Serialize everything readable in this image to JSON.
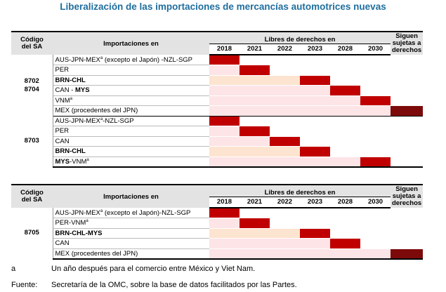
{
  "title": "Liberalización de las importaciones de mercancías automotrices nuevas",
  "header": {
    "hs_label_1": "Código",
    "hs_label_2": "del SA",
    "imports_label": "Importaciones en",
    "duty_free_label": "Libres de derechos en",
    "years": [
      "2018",
      "2021",
      "2022",
      "2023",
      "2028",
      "2030"
    ],
    "still_label_1": "Siguen",
    "still_label_2": "sujetas a",
    "still_label_2_alt": "sujetas a",
    "still_label_3": "derechos"
  },
  "table1": {
    "group1": {
      "hs_1": "8702",
      "hs_2": "8704",
      "rows": [
        {
          "p1": "AUS-JPN-MEX",
          "sup": "a",
          "p2": " (excepto el Japón) -NZL-SGP",
          "p3": ""
        },
        {
          "p1": "PER",
          "sup": "",
          "p2": "",
          "p3": ""
        },
        {
          "p1": "BRN-CHL",
          "sup": "",
          "p2": "",
          "p3": ""
        },
        {
          "p1": "CAN - ",
          "sup": "",
          "p2": "MYS",
          "p3": ""
        },
        {
          "p1": "VNM",
          "sup": "a",
          "p2": "",
          "p3": ""
        },
        {
          "p1": "MEX (procedentes del JPN)",
          "sup": "",
          "p2": "",
          "p3": ""
        }
      ]
    },
    "group2": {
      "hs": "8703",
      "rows": [
        {
          "p1": "AUS-JPN-MEX",
          "sup": "a",
          "p2": "-NZL-SGP",
          "p3": ""
        },
        {
          "p1": "PER",
          "sup": "",
          "p2": "",
          "p3": ""
        },
        {
          "p1": "CAN",
          "sup": "",
          "p2": "",
          "p3": ""
        },
        {
          "p1": "BRN-CHL",
          "sup": "",
          "p2": "",
          "p3": ""
        },
        {
          "p1": "MYS",
          "sup": "",
          "p2": "-VNM",
          "p3": "a"
        }
      ]
    }
  },
  "table2": {
    "hs": "8705",
    "rows": [
      {
        "p1": "AUS-JPN-MEX",
        "sup": "a",
        "p2": " (excepto el Japón)-NZL-SGP",
        "p3": ""
      },
      {
        "p1": "PER-VNM",
        "sup": "a",
        "p2": "",
        "p3": ""
      },
      {
        "p1": "BRN-CHL-MYS",
        "sup": "",
        "p2": "",
        "p3": ""
      },
      {
        "p1": "CAN",
        "sup": "",
        "p2": "",
        "p3": ""
      },
      {
        "p1": "MEX (procedentes del JPN)",
        "sup": "",
        "p2": "",
        "p3": ""
      }
    ]
  },
  "legend_colors": {
    "duty_free_year": "#c00000",
    "phase_out": "#fde4e6",
    "phase_out_alt": "#fde4d0",
    "remains_dutiable": "#7d0a0a"
  },
  "notes": {
    "a_key": "a",
    "a_text": "Un año después para el comercio entre México y Viet Nam.",
    "source_key": "Fuente:",
    "source_text": "Secretaría de la OMC, sobre la base de datos facilitados por las Partes."
  }
}
